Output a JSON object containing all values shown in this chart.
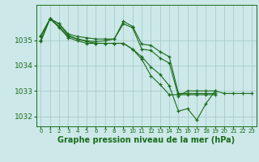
{
  "background_color": "#cce8e8",
  "grid_color": "#aacccc",
  "line_color": "#1a6b1a",
  "marker_color": "#1a6b1a",
  "xlabel": "Graphe pression niveau de la mer (hPa)",
  "xlabel_fontsize": 7.0,
  "ylabel_ticks": [
    1032,
    1033,
    1034,
    1035
  ],
  "xlim": [
    -0.5,
    23.5
  ],
  "ylim": [
    1031.6,
    1036.4
  ],
  "series": [
    [
      1035.2,
      1035.85,
      1035.55,
      1035.15,
      1035.05,
      1034.98,
      1034.95,
      1034.98,
      1035.05,
      1035.65,
      1035.5,
      1034.65,
      1034.6,
      1034.3,
      1034.1,
      1032.8,
      1033.0,
      1033.0,
      1033.0,
      1033.0
    ],
    [
      1035.0,
      1035.85,
      1035.5,
      1035.1,
      1034.98,
      1034.88,
      1034.88,
      1034.88,
      1034.88,
      1034.88,
      1034.65,
      1034.35,
      1033.95,
      1033.65,
      1033.2,
      1032.2,
      1032.3,
      1031.85,
      1032.5,
      1033.0,
      1032.9,
      1032.9,
      1032.9,
      1032.9
    ],
    [
      1035.15,
      1035.85,
      1035.65,
      1035.25,
      1035.15,
      1035.1,
      1035.05,
      1035.05,
      1035.05,
      1035.75,
      1035.55,
      1034.85,
      1034.8,
      1034.55,
      1034.35,
      1032.9,
      1032.9,
      1032.9,
      1032.9,
      1032.9
    ],
    [
      1034.95,
      1035.85,
      1035.65,
      1035.2,
      1035.05,
      1034.95,
      1034.88,
      1034.88,
      1034.88,
      1034.88,
      1034.65,
      1034.25,
      1033.6,
      1033.25,
      1032.85,
      1032.85,
      1032.85,
      1032.85,
      1032.85,
      1032.85
    ]
  ],
  "series_x": [
    [
      0,
      1,
      2,
      3,
      4,
      5,
      6,
      7,
      8,
      9,
      10,
      11,
      12,
      13,
      14,
      15,
      16,
      17,
      18,
      19
    ],
    [
      0,
      1,
      2,
      3,
      4,
      5,
      6,
      7,
      8,
      9,
      10,
      11,
      12,
      13,
      14,
      15,
      16,
      17,
      18,
      19,
      20,
      21,
      22,
      23
    ],
    [
      0,
      1,
      2,
      3,
      4,
      5,
      6,
      7,
      8,
      9,
      10,
      11,
      12,
      13,
      14,
      15,
      16,
      17,
      18,
      19
    ],
    [
      0,
      1,
      2,
      3,
      4,
      5,
      6,
      7,
      8,
      9,
      10,
      11,
      12,
      13,
      14,
      15,
      16,
      17,
      18,
      19
    ]
  ]
}
